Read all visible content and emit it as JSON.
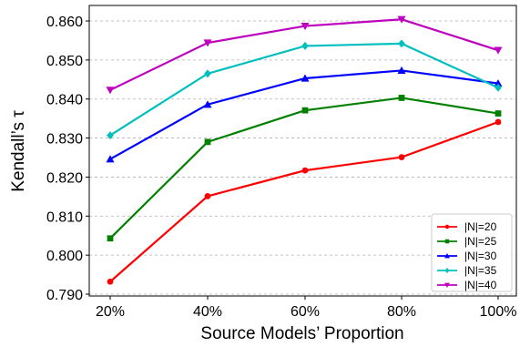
{
  "chart_data": {
    "type": "line",
    "title": "",
    "xlabel": "Source Models’ Proportion",
    "ylabel": "Kendall’s τ",
    "categories": [
      "20%",
      "40%",
      "60%",
      "80%",
      "100%"
    ],
    "ylim": [
      0.79,
      0.863
    ],
    "yticks": [
      "0.790",
      "0.800",
      "0.810",
      "0.820",
      "0.830",
      "0.840",
      "0.850",
      "0.860"
    ],
    "grid": "horizontal dashed",
    "legend_position": "bottom-right",
    "series": [
      {
        "name": "|N|=20",
        "color": "#ff0000",
        "marker": "circle",
        "values": [
          0.7932,
          0.8151,
          0.8217,
          0.8251,
          0.8341
        ]
      },
      {
        "name": "|N|=25",
        "color": "#008000",
        "marker": "square",
        "values": [
          0.8043,
          0.829,
          0.8371,
          0.8403,
          0.8363
        ]
      },
      {
        "name": "|N|=30",
        "color": "#0000ff",
        "marker": "triangle-up",
        "values": [
          0.8246,
          0.8386,
          0.8453,
          0.8473,
          0.844
        ]
      },
      {
        "name": "|N|=35",
        "color": "#00bfbf",
        "marker": "diamond",
        "values": [
          0.8307,
          0.8465,
          0.8536,
          0.8542,
          0.8429
        ]
      },
      {
        "name": "|N|=40",
        "color": "#bf00bf",
        "marker": "triangle-down",
        "values": [
          0.8423,
          0.8544,
          0.8587,
          0.8604,
          0.8525
        ]
      }
    ]
  }
}
